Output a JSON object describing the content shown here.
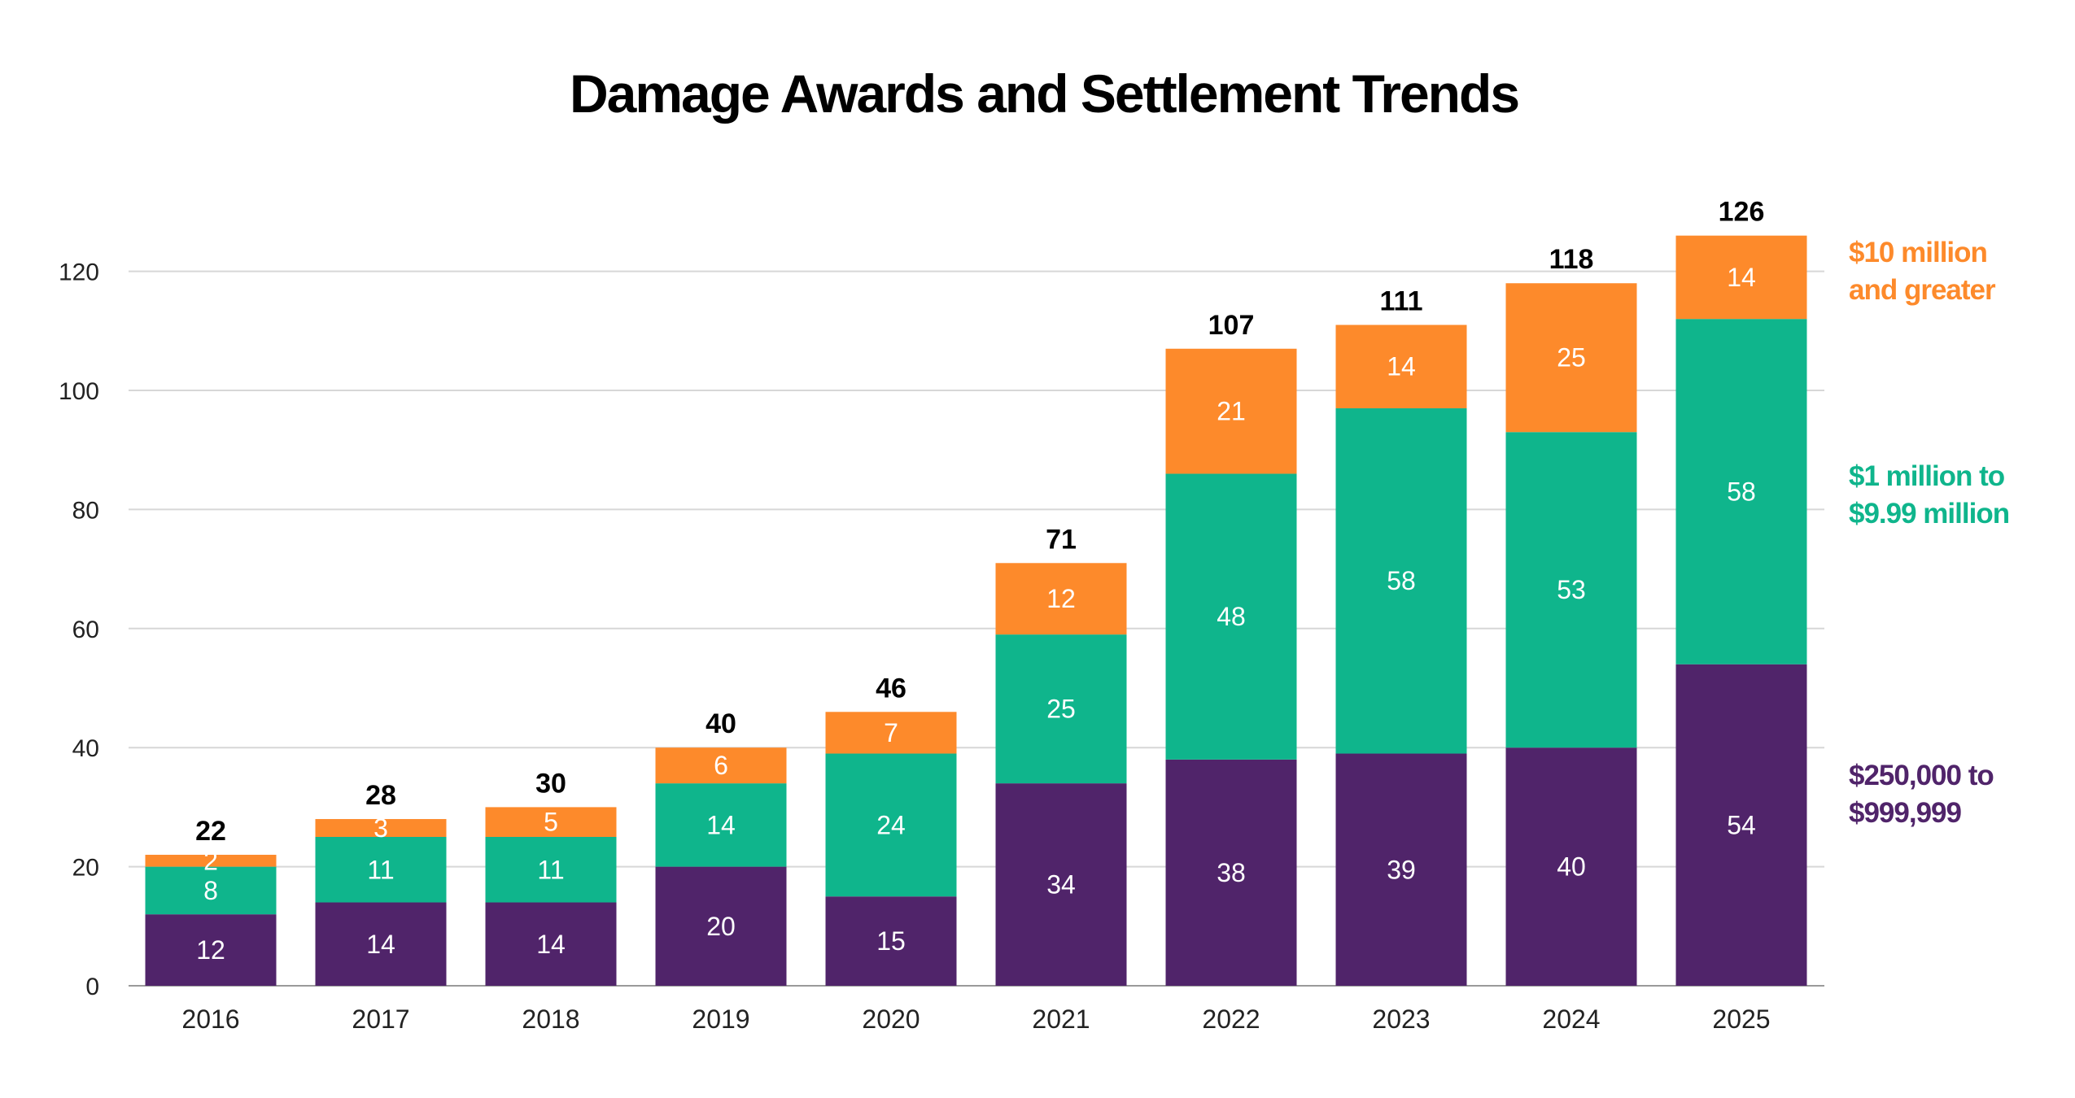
{
  "chart_data": {
    "type": "bar",
    "stacked": true,
    "title": "Damage Awards and Settlement Trends",
    "xlabel": "",
    "ylabel": "",
    "ylim": [
      0,
      120
    ],
    "yticks": [
      0,
      20,
      40,
      60,
      80,
      100,
      120
    ],
    "grid": true,
    "legend_position": "right",
    "categories": [
      "2016",
      "2017",
      "2018",
      "2019",
      "2020",
      "2021",
      "2022",
      "2023",
      "2024",
      "2025"
    ],
    "totals": [
      22,
      28,
      30,
      40,
      46,
      71,
      107,
      111,
      118,
      126
    ],
    "series": [
      {
        "name": "$250,000 to $999,999",
        "legend_lines": [
          "$250,000 to",
          "$999,999"
        ],
        "color": "#50246a",
        "values": [
          12,
          14,
          14,
          20,
          15,
          34,
          38,
          39,
          40,
          54
        ]
      },
      {
        "name": "$1 million to $9.99 million",
        "legend_lines": [
          "$1 million to",
          "$9.99 million"
        ],
        "color": "#0fb58c",
        "values": [
          8,
          11,
          11,
          14,
          24,
          25,
          48,
          58,
          53,
          58
        ]
      },
      {
        "name": "$10 million and greater",
        "legend_lines": [
          "$10 million",
          "and greater"
        ],
        "color": "#fd8a2b",
        "values": [
          2,
          3,
          5,
          6,
          7,
          12,
          21,
          14,
          25,
          14
        ]
      }
    ]
  }
}
